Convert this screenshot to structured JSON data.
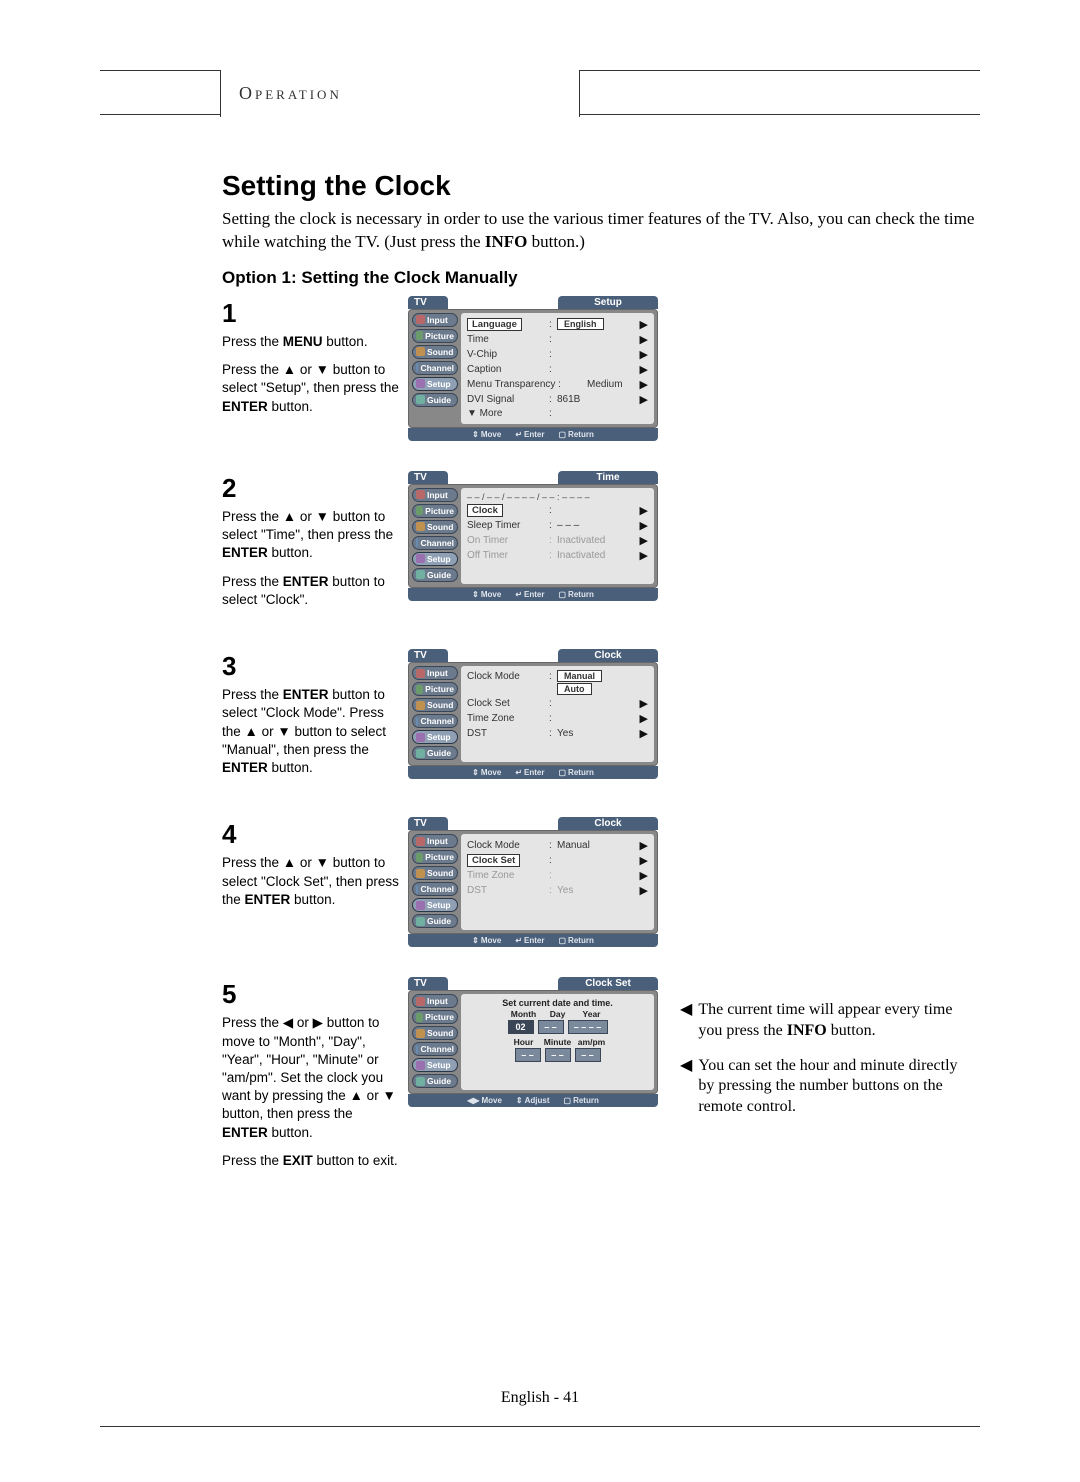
{
  "header_label": "Operation",
  "title": "Setting the Clock",
  "intro": "Setting the clock is necessary in order to use the various timer features of the TV. Also, you can check the time while watching the TV. (Just press the INFO button.)",
  "subtitle": "Option 1: Setting the Clock Manually",
  "page_num": "English - 41",
  "sidebar_items": [
    "Input",
    "Picture",
    "Sound",
    "Channel",
    "Setup",
    "Guide"
  ],
  "sidebar_colors": [
    "#b86868",
    "#6b9a6b",
    "#c09050",
    "#6a8ab0",
    "#9a70b0",
    "#70b0a0"
  ],
  "footer_move": "Move",
  "footer_enter": "Enter",
  "footer_return": "Return",
  "footer_adjust": "Adjust",
  "steps": {
    "s1": {
      "num": "1",
      "p1": "Press the MENU button.",
      "p2": "Press the ▲ or ▼ button to select \"Setup\", then press the ENTER button.",
      "tv_tab": "TV",
      "tv_title": "Setup",
      "rows": [
        {
          "lbl": "Language",
          "val": "English",
          "hi": true
        },
        {
          "lbl": "Time",
          "val": ""
        },
        {
          "lbl": "V-Chip",
          "val": ""
        },
        {
          "lbl": "Caption",
          "val": ""
        },
        {
          "lbl": "Menu Transparency :",
          "val": "Medium",
          "nosep": true
        },
        {
          "lbl": "DVI Signal",
          "val": "861B"
        },
        {
          "lbl": "▼ More",
          "val": "",
          "noarr": true
        }
      ],
      "active_side": "Setup"
    },
    "s2": {
      "num": "2",
      "p1": "Press the ▲ or ▼ button to select \"Time\", then press the ENTER button.",
      "p2": "Press the ENTER button to select \"Clock\".",
      "tv_tab": "TV",
      "tv_title": "Time",
      "top_time": "– – / – – / – – – – / – – : – –  – –",
      "rows": [
        {
          "lbl": "Clock",
          "val": "",
          "hi": true
        },
        {
          "lbl": "Sleep Timer",
          "val": "– – –"
        },
        {
          "lbl": "On Timer",
          "val": "Inactivated",
          "dim": true
        },
        {
          "lbl": "Off Timer",
          "val": "Inactivated",
          "dim": true
        }
      ],
      "active_side": "Setup"
    },
    "s3": {
      "num": "3",
      "p1": "Press the ENTER button to select \"Clock Mode\". Press the ▲ or ▼ button to select \"Manual\", then press the ENTER button.",
      "tv_tab": "TV",
      "tv_title": "Clock",
      "rows": [
        {
          "lbl": "Clock Mode",
          "val": "",
          "opts": [
            "Manual",
            "Auto"
          ]
        },
        {
          "lbl": "Clock Set",
          "val": ""
        },
        {
          "lbl": "Time Zone",
          "val": ""
        },
        {
          "lbl": "DST",
          "val": "Yes"
        }
      ],
      "active_side": "Setup"
    },
    "s4": {
      "num": "4",
      "p1": "Press the ▲ or ▼ button to select \"Clock Set\", then press the ENTER button.",
      "tv_tab": "TV",
      "tv_title": "Clock",
      "rows": [
        {
          "lbl": "Clock Mode",
          "val": "Manual"
        },
        {
          "lbl": "Clock Set",
          "val": "",
          "hi": true
        },
        {
          "lbl": "Time Zone",
          "val": "",
          "dim": true
        },
        {
          "lbl": "DST",
          "val": "Yes",
          "dim": true
        }
      ],
      "active_side": "Setup"
    },
    "s5": {
      "num": "5",
      "p1": "Press the ◀ or ▶ button to move to \"Month\", \"Day\", \"Year\", \"Hour\", \"Minute\" or \"am/pm\". Set the clock you want by pressing the ▲ or ▼ button, then press the ENTER button.",
      "p2": "Press the EXIT button to exit.",
      "tv_tab": "TV",
      "tv_title": "Clock Set",
      "head": "Set current date and time.",
      "labels1": [
        "Month",
        "Day",
        "Year"
      ],
      "vals1": [
        "02",
        "– –",
        "– – – –"
      ],
      "labels2": [
        "Hour",
        "Minute",
        "am/pm"
      ],
      "vals2": [
        "– –",
        "– –",
        "– –"
      ],
      "active_side": "Setup"
    }
  },
  "notes": {
    "n1": "The current time will appear every time you press the INFO button.",
    "n2": "You can set the hour and minute directly by pressing the number buttons on the remote control."
  }
}
